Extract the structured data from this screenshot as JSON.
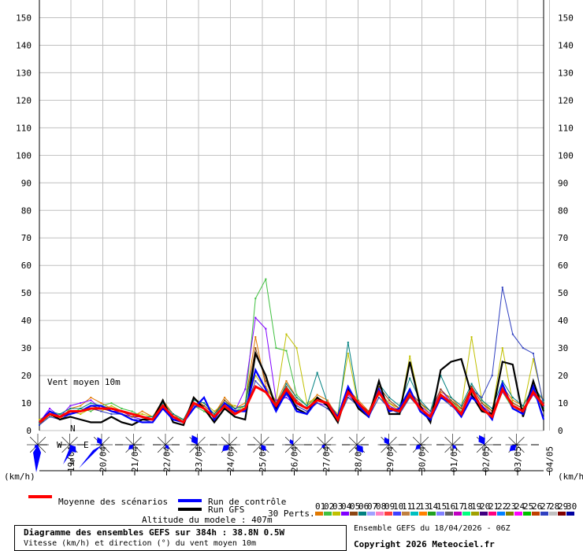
{
  "chart_data": {
    "type": "line",
    "y_ticks": [
      0,
      10,
      20,
      30,
      40,
      50,
      60,
      70,
      80,
      90,
      100,
      110,
      120,
      130,
      140,
      150
    ],
    "ylim": [
      0,
      155
    ],
    "x_date_labels": [
      "19/04",
      "20/04",
      "21/04",
      "22/04",
      "23/04",
      "24/04",
      "25/04",
      "26/04",
      "27/04",
      "28/04",
      "29/04",
      "30/04",
      "01/05",
      "02/05",
      "03/05",
      "04/05"
    ],
    "x_range_hours": [
      0,
      384
    ],
    "series": [
      {
        "name": "Moyenne des scénarios",
        "color": "#ff0000",
        "values": [
          3,
          6,
          5,
          7,
          7,
          8,
          8,
          8,
          7,
          6,
          5,
          4,
          9,
          5,
          3,
          10,
          8,
          5,
          9,
          6,
          8,
          16,
          14,
          9,
          15,
          10,
          8,
          11,
          10,
          4,
          14,
          10,
          6,
          14,
          8,
          7,
          13,
          8,
          5,
          13,
          10,
          6,
          15,
          8,
          5,
          15,
          9,
          7,
          14,
          9
        ]
      },
      {
        "name": "Run de contrôle",
        "color": "#0000ff",
        "values": [
          3,
          7,
          5,
          6,
          7,
          9,
          9,
          7,
          6,
          4,
          3,
          3,
          8,
          4,
          3,
          8,
          12,
          4,
          10,
          7,
          7,
          22,
          15,
          7,
          14,
          7,
          6,
          11,
          10,
          5,
          16,
          9,
          5,
          15,
          7,
          8,
          15,
          7,
          4,
          12,
          10,
          5,
          12,
          9,
          4,
          17,
          8,
          6,
          16,
          4
        ]
      },
      {
        "name": "Run GFS",
        "color": "#000000",
        "values": [
          3,
          6,
          4,
          5,
          4,
          3,
          3,
          5,
          3,
          2,
          4,
          4,
          11,
          3,
          2,
          12,
          8,
          3,
          8,
          5,
          4,
          28,
          20,
          8,
          15,
          8,
          6,
          12,
          9,
          3,
          15,
          8,
          5,
          18,
          6,
          6,
          25,
          9,
          3,
          22,
          25,
          26,
          13,
          7,
          6,
          25,
          24,
          5,
          18,
          7
        ]
      },
      {
        "name": "01",
        "color": "#e07800",
        "values": [
          2,
          7,
          4,
          8,
          9,
          12,
          10,
          8,
          6,
          5,
          7,
          5,
          11,
          6,
          3,
          12,
          9,
          6,
          12,
          8,
          10,
          34,
          16,
          10,
          18,
          12,
          9,
          13,
          11,
          5,
          15,
          11,
          7,
          13,
          10,
          8,
          14,
          9,
          6,
          14,
          12,
          8,
          16,
          10,
          6,
          16,
          11,
          9,
          15,
          11
        ]
      },
      {
        "name": "02",
        "color": "#40c040",
        "values": [
          3,
          5,
          6,
          6,
          8,
          7,
          9,
          10,
          8,
          7,
          5,
          4,
          8,
          5,
          4,
          9,
          7,
          5,
          11,
          7,
          9,
          48,
          55,
          30,
          29,
          13,
          9,
          12,
          9,
          4,
          12,
          10,
          5,
          12,
          9,
          6,
          12,
          8,
          5,
          12,
          11,
          7,
          14,
          9,
          5,
          14,
          8,
          7,
          13,
          8
        ]
      },
      {
        "name": "03",
        "color": "#c0c000",
        "values": [
          4,
          6,
          5,
          7,
          6,
          8,
          7,
          9,
          7,
          6,
          6,
          5,
          10,
          6,
          4,
          11,
          10,
          7,
          10,
          9,
          8,
          20,
          15,
          11,
          35,
          30,
          10,
          12,
          10,
          6,
          28,
          9,
          6,
          14,
          10,
          7,
          27,
          10,
          6,
          13,
          9,
          8,
          34,
          11,
          7,
          30,
          10,
          8,
          26,
          10
        ]
      },
      {
        "name": "04",
        "color": "#8000ff",
        "values": [
          3,
          8,
          5,
          9,
          10,
          11,
          8,
          7,
          7,
          5,
          4,
          4,
          9,
          4,
          3,
          10,
          8,
          5,
          9,
          7,
          15,
          41,
          37,
          11,
          12,
          9,
          7,
          10,
          9,
          5,
          13,
          9,
          6,
          15,
          9,
          7,
          13,
          9,
          6,
          15,
          10,
          6,
          13,
          9,
          6,
          14,
          9,
          7,
          13,
          9
        ]
      },
      {
        "name": "05",
        "color": "#8b4513",
        "values": [
          2,
          6,
          4,
          6,
          7,
          9,
          8,
          7,
          6,
          5,
          5,
          4,
          9,
          5,
          3,
          10,
          9,
          6,
          11,
          8,
          9,
          30,
          18,
          10,
          16,
          11,
          8,
          12,
          10,
          5,
          14,
          10,
          7,
          16,
          11,
          8,
          14,
          10,
          7,
          15,
          11,
          8,
          16,
          10,
          7,
          15,
          10,
          8,
          14,
          10
        ]
      },
      {
        "name": "06",
        "color": "#008080",
        "values": [
          3,
          7,
          6,
          8,
          8,
          10,
          9,
          8,
          7,
          6,
          5,
          5,
          10,
          6,
          4,
          11,
          10,
          6,
          10,
          8,
          9,
          28,
          20,
          9,
          17,
          12,
          9,
          21,
          10,
          5,
          32,
          10,
          6,
          17,
          12,
          9,
          19,
          11,
          7,
          20,
          12,
          9,
          17,
          11,
          8,
          18,
          12,
          9,
          16,
          11
        ]
      },
      {
        "name": "27",
        "color": "#3040c0",
        "values": [
          2,
          5,
          4,
          6,
          7,
          8,
          7,
          6,
          6,
          4,
          4,
          3,
          8,
          4,
          3,
          9,
          8,
          5,
          9,
          7,
          8,
          18,
          14,
          8,
          13,
          9,
          7,
          10,
          8,
          4,
          12,
          9,
          5,
          12,
          8,
          6,
          12,
          8,
          5,
          12,
          9,
          6,
          15,
          12,
          20,
          52,
          35,
          30,
          28,
          9
        ]
      }
    ]
  },
  "axis_unit": "(km/h)",
  "y_label_text": "Vent moyen 10m",
  "compass": {
    "n": "N",
    "s": "S",
    "e": "E",
    "w": "W"
  },
  "legend": {
    "mean": "Moyenne des scénarios",
    "control": "Run de contrôle",
    "gfs": "Run GFS",
    "perts": "30 Perts.",
    "perturbations": [
      "01",
      "02",
      "03",
      "04",
      "05",
      "06",
      "07",
      "08",
      "09",
      "10",
      "11",
      "12",
      "13",
      "14",
      "15",
      "16",
      "17",
      "18",
      "19",
      "20",
      "21",
      "22",
      "23",
      "24",
      "25",
      "26",
      "27",
      "28",
      "29",
      "30"
    ],
    "pert_colors": [
      "#e07800",
      "#40c040",
      "#c0c000",
      "#8000ff",
      "#8b4513",
      "#008080",
      "#a0a0ff",
      "#ff80c0",
      "#ff4040",
      "#4040ff",
      "#c08040",
      "#00c0c0",
      "#ff8000",
      "#20a020",
      "#8080ff",
      "#606060",
      "#c000c0",
      "#00ff80",
      "#a0a000",
      "#400080",
      "#ff0080",
      "#0080ff",
      "#808000",
      "#ff00ff",
      "#00c000",
      "#c04000",
      "#3040c0",
      "#c0c0c0",
      "#800000",
      "#0000a0"
    ]
  },
  "altitude": "Altitude du modele : 407m",
  "title_box": {
    "title": "Diagramme des ensembles GEFS sur 384h : 38.8N 0.5W",
    "subtitle": "Vitesse (km/h) et direction (°) du vent moyen 10m"
  },
  "run_info": "Ensemble GEFS du 18/04/2026 - 06Z",
  "copyright": "Copyright 2026 Meteociel.fr",
  "colors": {
    "mean": "#ff0000",
    "control": "#0000ff",
    "gfs": "#000000",
    "rose": "#0000ff",
    "grid": "#c0c0c0"
  }
}
